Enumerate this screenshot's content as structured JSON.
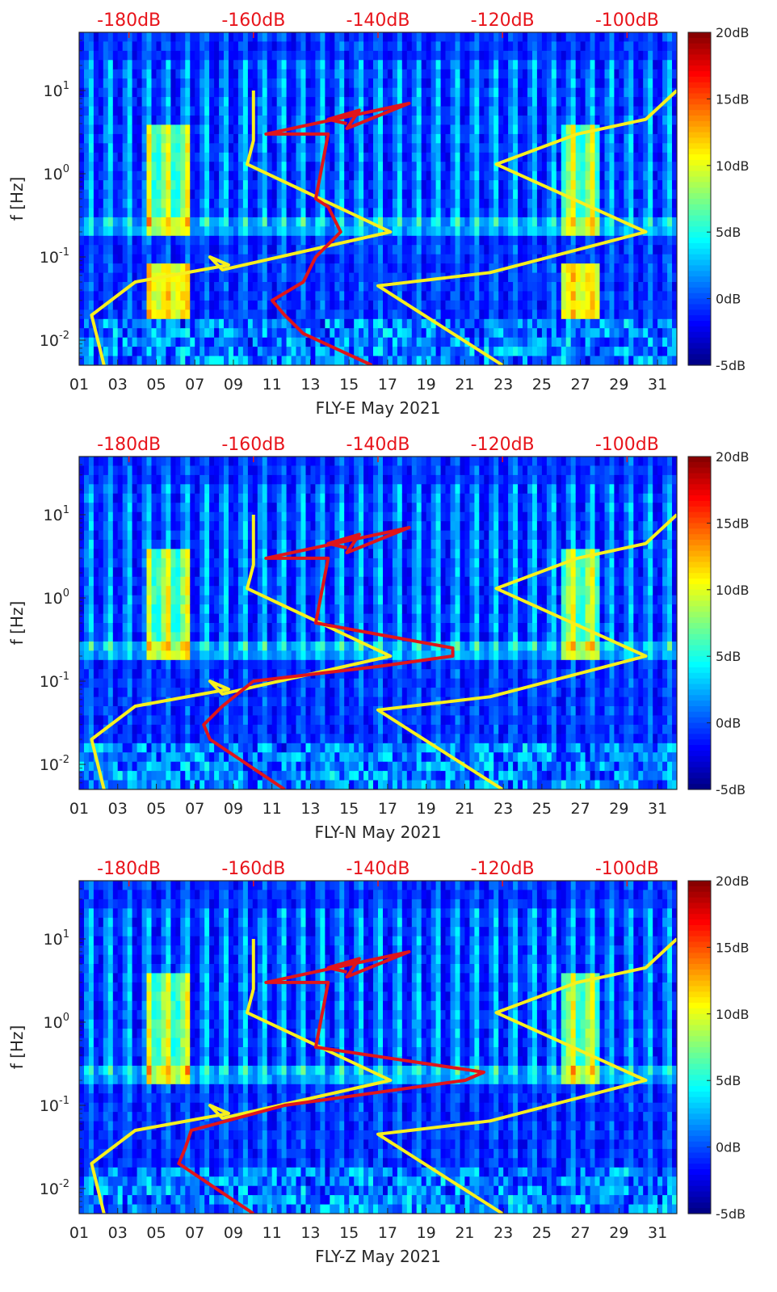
{
  "shared": {
    "month": "May 2021",
    "ylabel": "f [Hz]",
    "x_ticks": [
      "01",
      "03",
      "05",
      "07",
      "09",
      "11",
      "13",
      "15",
      "17",
      "19",
      "21",
      "23",
      "25",
      "27",
      "29",
      "31"
    ],
    "y_ticks": [
      {
        "base": "10",
        "exp": "1",
        "value": 10
      },
      {
        "base": "10",
        "exp": "0",
        "value": 1
      },
      {
        "base": "10",
        "exp": "-1",
        "value": 0.1
      },
      {
        "base": "10",
        "exp": "-2",
        "value": 0.01
      }
    ],
    "top_axis_ticks": [
      "-180dB",
      "-160dB",
      "-140dB",
      "-120dB",
      "-100dB"
    ],
    "colorbar_ticks": [
      "20dB",
      "15dB",
      "10dB",
      "5dB",
      "0dB",
      "-5dB"
    ],
    "colormap": "jet",
    "curve_colors": {
      "model": "#f7f01e",
      "psd": "#e0151a"
    }
  },
  "chart_data": [
    {
      "type": "heatmap",
      "station": "FLY-E",
      "xlabel": "FLY-E May 2021",
      "xlim_day": [
        1,
        32
      ],
      "ylim_hz": [
        0.005,
        50
      ],
      "top_axis_db": [
        -188,
        -92
      ],
      "clim_db": [
        -5,
        20
      ],
      "psd_curve": {
        "name": "PSD (dB)",
        "points": [
          [
            4,
            -145
          ],
          [
            4.5,
            -148
          ],
          [
            5.8,
            -143
          ],
          [
            3.5,
            -145
          ],
          [
            7,
            -135
          ],
          [
            3,
            -158
          ],
          [
            3,
            -148
          ],
          [
            0.5,
            -150
          ],
          [
            0.4,
            -148
          ],
          [
            0.2,
            -146
          ],
          [
            0.1,
            -150
          ],
          [
            0.05,
            -152
          ],
          [
            0.03,
            -157
          ],
          [
            0.02,
            -155
          ],
          [
            0.012,
            -152
          ],
          [
            0.005,
            -141
          ]
        ]
      },
      "noise_model_curve": {
        "name": "Noise model",
        "points": [
          [
            10,
            -160
          ],
          [
            2.5,
            -160
          ],
          [
            1.3,
            -161
          ],
          [
            0.2,
            -138
          ],
          [
            0.07,
            -165
          ],
          [
            0.1,
            -167
          ],
          [
            0.08,
            -164
          ],
          [
            0.05,
            -179
          ],
          [
            0.02,
            -186
          ],
          [
            0.005,
            -184
          ]
        ]
      },
      "noise_model_curve_2": {
        "name": "Noise model",
        "points": [
          [
            10,
            -92
          ],
          [
            4.5,
            -97
          ],
          [
            3,
            -108
          ],
          [
            1.3,
            -121
          ],
          [
            0.2,
            -97
          ],
          [
            0.065,
            -122
          ],
          [
            0.045,
            -140
          ],
          [
            0.005,
            -120
          ]
        ]
      }
    },
    {
      "type": "heatmap",
      "station": "FLY-N",
      "xlabel": "FLY-N May 2021",
      "xlim_day": [
        1,
        32
      ],
      "ylim_hz": [
        0.005,
        50
      ],
      "top_axis_db": [
        -188,
        -92
      ],
      "clim_db": [
        -5,
        20
      ],
      "psd_curve": {
        "name": "PSD (dB)",
        "points": [
          [
            4,
            -145
          ],
          [
            4.5,
            -148
          ],
          [
            5.8,
            -143
          ],
          [
            3.5,
            -145
          ],
          [
            7,
            -135
          ],
          [
            3,
            -158
          ],
          [
            3,
            -148
          ],
          [
            0.5,
            -150
          ],
          [
            0.25,
            -128
          ],
          [
            0.2,
            -128
          ],
          [
            0.15,
            -140
          ],
          [
            0.1,
            -160
          ],
          [
            0.05,
            -165
          ],
          [
            0.03,
            -168
          ],
          [
            0.02,
            -167
          ],
          [
            0.005,
            -155
          ]
        ]
      },
      "noise_model_curve": {
        "name": "Noise model",
        "points": [
          [
            10,
            -160
          ],
          [
            2.5,
            -160
          ],
          [
            1.3,
            -161
          ],
          [
            0.2,
            -138
          ],
          [
            0.07,
            -165
          ],
          [
            0.1,
            -167
          ],
          [
            0.08,
            -164
          ],
          [
            0.05,
            -179
          ],
          [
            0.02,
            -186
          ],
          [
            0.005,
            -184
          ]
        ]
      },
      "noise_model_curve_2": {
        "name": "Noise model",
        "points": [
          [
            10,
            -92
          ],
          [
            4.5,
            -97
          ],
          [
            3,
            -108
          ],
          [
            1.3,
            -121
          ],
          [
            0.2,
            -97
          ],
          [
            0.065,
            -122
          ],
          [
            0.045,
            -140
          ],
          [
            0.005,
            -120
          ]
        ]
      }
    },
    {
      "type": "heatmap",
      "station": "FLY-Z",
      "xlabel": "FLY-Z May 2021",
      "xlim_day": [
        1,
        32
      ],
      "ylim_hz": [
        0.005,
        50
      ],
      "top_axis_db": [
        -188,
        -92
      ],
      "clim_db": [
        -5,
        20
      ],
      "psd_curve": {
        "name": "PSD (dB)",
        "points": [
          [
            4,
            -145
          ],
          [
            4.5,
            -148
          ],
          [
            5.8,
            -143
          ],
          [
            3.5,
            -145
          ],
          [
            7,
            -135
          ],
          [
            3,
            -158
          ],
          [
            3,
            -148
          ],
          [
            0.5,
            -150
          ],
          [
            0.25,
            -123
          ],
          [
            0.2,
            -126
          ],
          [
            0.1,
            -155
          ],
          [
            0.05,
            -170
          ],
          [
            0.03,
            -171
          ],
          [
            0.02,
            -172
          ],
          [
            0.005,
            -160
          ]
        ]
      },
      "noise_model_curve": {
        "name": "Noise model",
        "points": [
          [
            10,
            -160
          ],
          [
            2.5,
            -160
          ],
          [
            1.3,
            -161
          ],
          [
            0.2,
            -138
          ],
          [
            0.07,
            -165
          ],
          [
            0.1,
            -167
          ],
          [
            0.08,
            -164
          ],
          [
            0.05,
            -179
          ],
          [
            0.02,
            -186
          ],
          [
            0.005,
            -184
          ]
        ]
      },
      "noise_model_curve_2": {
        "name": "Noise model",
        "points": [
          [
            10,
            -92
          ],
          [
            4.5,
            -97
          ],
          [
            3,
            -108
          ],
          [
            1.3,
            -121
          ],
          [
            0.2,
            -97
          ],
          [
            0.065,
            -122
          ],
          [
            0.045,
            -140
          ],
          [
            0.005,
            -120
          ]
        ]
      }
    }
  ]
}
